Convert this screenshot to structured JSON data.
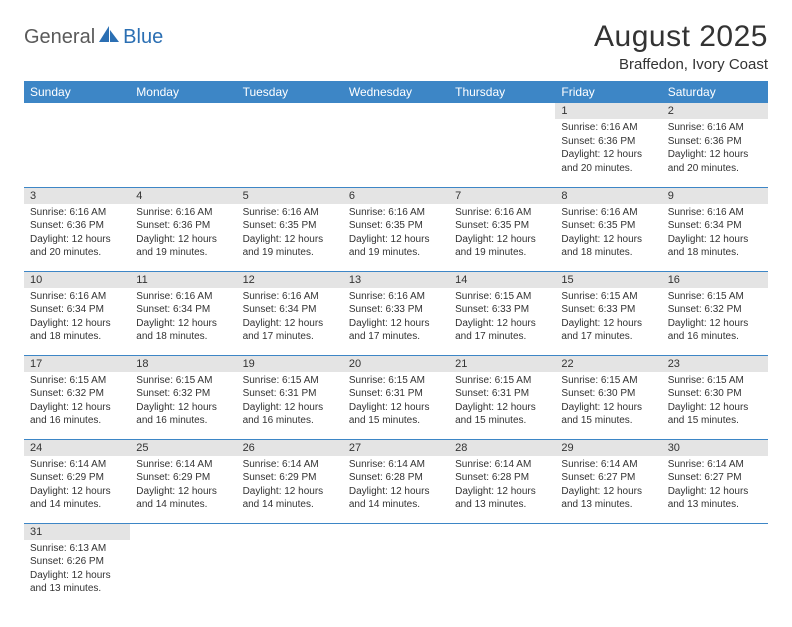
{
  "logo": {
    "part1": "General",
    "part2": "Blue"
  },
  "title": "August 2025",
  "location": "Braffedon, Ivory Coast",
  "colors": {
    "header_bg": "#3d86c6",
    "header_text": "#ffffff",
    "daynum_bg": "#e4e4e4",
    "border": "#3d86c6",
    "logo_gray": "#5a5a5a",
    "logo_blue": "#2b6fb3"
  },
  "weekdays": [
    "Sunday",
    "Monday",
    "Tuesday",
    "Wednesday",
    "Thursday",
    "Friday",
    "Saturday"
  ],
  "weeks": [
    [
      null,
      null,
      null,
      null,
      null,
      {
        "n": "1",
        "sr": "6:16 AM",
        "ss": "6:36 PM",
        "dl": "12 hours and 20 minutes."
      },
      {
        "n": "2",
        "sr": "6:16 AM",
        "ss": "6:36 PM",
        "dl": "12 hours and 20 minutes."
      }
    ],
    [
      {
        "n": "3",
        "sr": "6:16 AM",
        "ss": "6:36 PM",
        "dl": "12 hours and 20 minutes."
      },
      {
        "n": "4",
        "sr": "6:16 AM",
        "ss": "6:36 PM",
        "dl": "12 hours and 19 minutes."
      },
      {
        "n": "5",
        "sr": "6:16 AM",
        "ss": "6:35 PM",
        "dl": "12 hours and 19 minutes."
      },
      {
        "n": "6",
        "sr": "6:16 AM",
        "ss": "6:35 PM",
        "dl": "12 hours and 19 minutes."
      },
      {
        "n": "7",
        "sr": "6:16 AM",
        "ss": "6:35 PM",
        "dl": "12 hours and 19 minutes."
      },
      {
        "n": "8",
        "sr": "6:16 AM",
        "ss": "6:35 PM",
        "dl": "12 hours and 18 minutes."
      },
      {
        "n": "9",
        "sr": "6:16 AM",
        "ss": "6:34 PM",
        "dl": "12 hours and 18 minutes."
      }
    ],
    [
      {
        "n": "10",
        "sr": "6:16 AM",
        "ss": "6:34 PM",
        "dl": "12 hours and 18 minutes."
      },
      {
        "n": "11",
        "sr": "6:16 AM",
        "ss": "6:34 PM",
        "dl": "12 hours and 18 minutes."
      },
      {
        "n": "12",
        "sr": "6:16 AM",
        "ss": "6:34 PM",
        "dl": "12 hours and 17 minutes."
      },
      {
        "n": "13",
        "sr": "6:16 AM",
        "ss": "6:33 PM",
        "dl": "12 hours and 17 minutes."
      },
      {
        "n": "14",
        "sr": "6:15 AM",
        "ss": "6:33 PM",
        "dl": "12 hours and 17 minutes."
      },
      {
        "n": "15",
        "sr": "6:15 AM",
        "ss": "6:33 PM",
        "dl": "12 hours and 17 minutes."
      },
      {
        "n": "16",
        "sr": "6:15 AM",
        "ss": "6:32 PM",
        "dl": "12 hours and 16 minutes."
      }
    ],
    [
      {
        "n": "17",
        "sr": "6:15 AM",
        "ss": "6:32 PM",
        "dl": "12 hours and 16 minutes."
      },
      {
        "n": "18",
        "sr": "6:15 AM",
        "ss": "6:32 PM",
        "dl": "12 hours and 16 minutes."
      },
      {
        "n": "19",
        "sr": "6:15 AM",
        "ss": "6:31 PM",
        "dl": "12 hours and 16 minutes."
      },
      {
        "n": "20",
        "sr": "6:15 AM",
        "ss": "6:31 PM",
        "dl": "12 hours and 15 minutes."
      },
      {
        "n": "21",
        "sr": "6:15 AM",
        "ss": "6:31 PM",
        "dl": "12 hours and 15 minutes."
      },
      {
        "n": "22",
        "sr": "6:15 AM",
        "ss": "6:30 PM",
        "dl": "12 hours and 15 minutes."
      },
      {
        "n": "23",
        "sr": "6:15 AM",
        "ss": "6:30 PM",
        "dl": "12 hours and 15 minutes."
      }
    ],
    [
      {
        "n": "24",
        "sr": "6:14 AM",
        "ss": "6:29 PM",
        "dl": "12 hours and 14 minutes."
      },
      {
        "n": "25",
        "sr": "6:14 AM",
        "ss": "6:29 PM",
        "dl": "12 hours and 14 minutes."
      },
      {
        "n": "26",
        "sr": "6:14 AM",
        "ss": "6:29 PM",
        "dl": "12 hours and 14 minutes."
      },
      {
        "n": "27",
        "sr": "6:14 AM",
        "ss": "6:28 PM",
        "dl": "12 hours and 14 minutes."
      },
      {
        "n": "28",
        "sr": "6:14 AM",
        "ss": "6:28 PM",
        "dl": "12 hours and 13 minutes."
      },
      {
        "n": "29",
        "sr": "6:14 AM",
        "ss": "6:27 PM",
        "dl": "12 hours and 13 minutes."
      },
      {
        "n": "30",
        "sr": "6:14 AM",
        "ss": "6:27 PM",
        "dl": "12 hours and 13 minutes."
      }
    ],
    [
      {
        "n": "31",
        "sr": "6:13 AM",
        "ss": "6:26 PM",
        "dl": "12 hours and 13 minutes."
      },
      null,
      null,
      null,
      null,
      null,
      null
    ]
  ],
  "labels": {
    "sunrise": "Sunrise:",
    "sunset": "Sunset:",
    "daylight": "Daylight:"
  }
}
